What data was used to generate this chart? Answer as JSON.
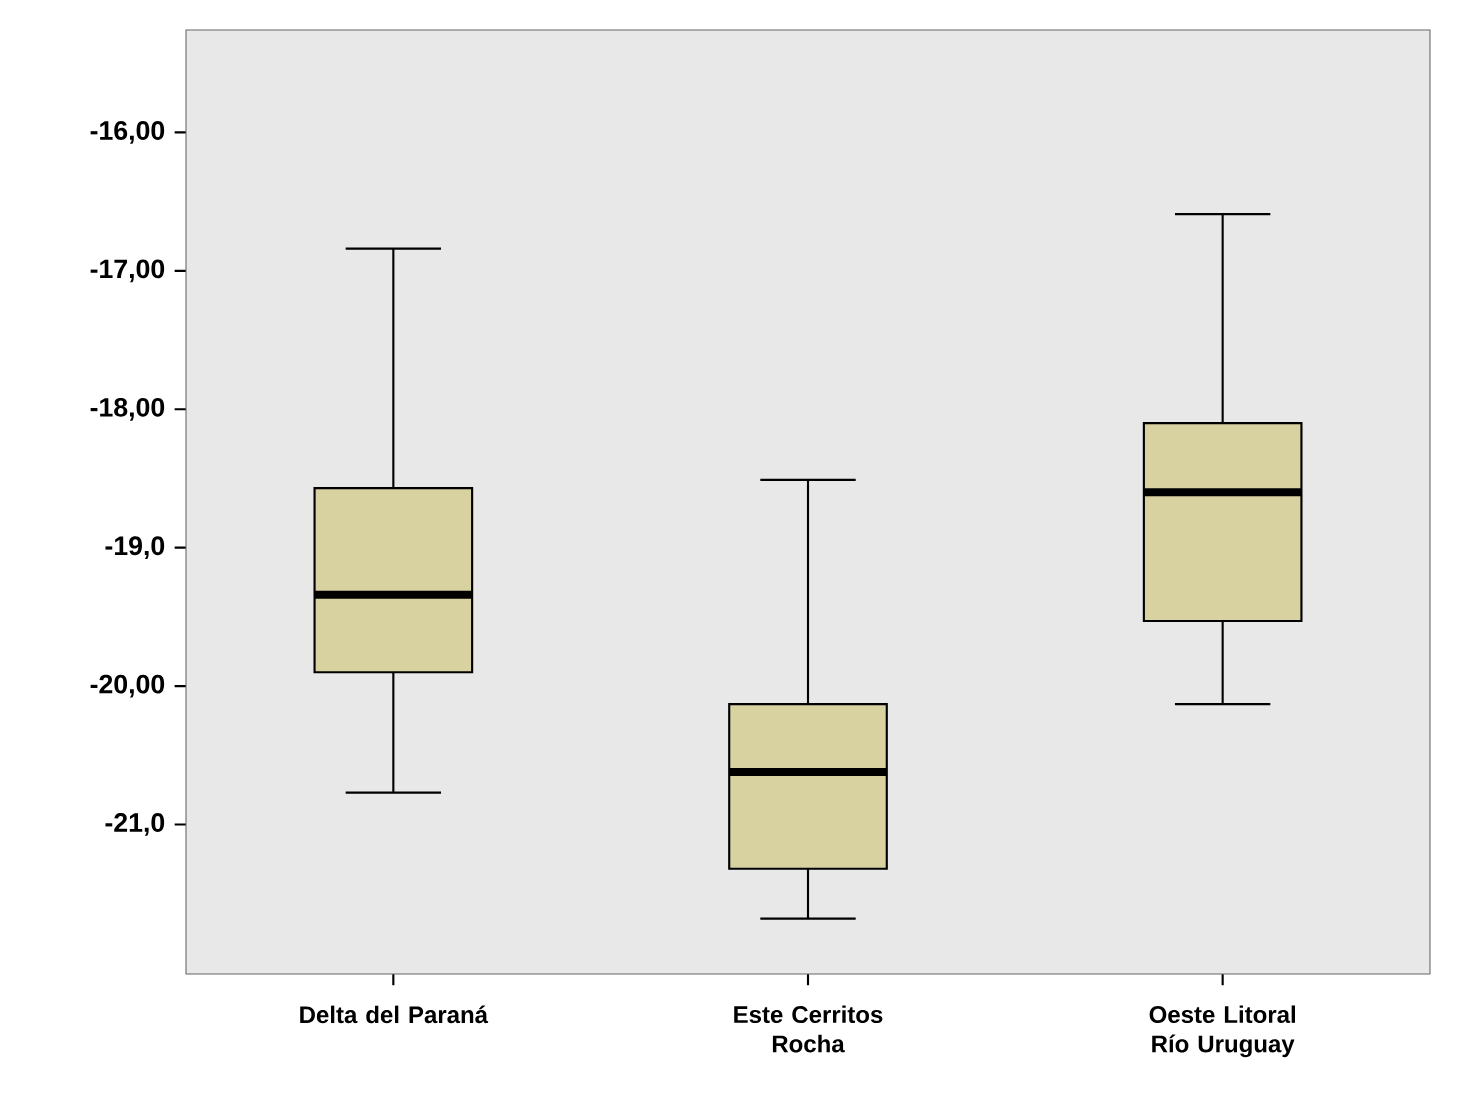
{
  "chart_data": {
    "type": "box",
    "categories": [
      "Delta del Paraná",
      "Este Cerritos Rocha",
      "Oeste Litoral Río Uruguay"
    ],
    "boxes": [
      {
        "low": -20.77,
        "q1": -19.9,
        "median": -19.34,
        "q3": -18.57,
        "high": -16.84
      },
      {
        "low": -21.68,
        "q1": -21.32,
        "median": -20.62,
        "q3": -20.13,
        "high": -18.51
      },
      {
        "low": -20.13,
        "q1": -19.53,
        "median": -18.6,
        "q3": -18.1,
        "high": -16.59
      }
    ],
    "color": "#d8d2a0",
    "ylim": [
      -22.08,
      -15.26
    ],
    "yticks": [
      {
        "value": -16,
        "label": "-16,00"
      },
      {
        "value": -17,
        "label": "-17,00"
      },
      {
        "value": -18,
        "label": "-18,00"
      },
      {
        "value": -19,
        "label": "-19,0"
      },
      {
        "value": -20,
        "label": "-20,00"
      },
      {
        "value": -21,
        "label": "-21,0"
      }
    ],
    "grid": false
  }
}
